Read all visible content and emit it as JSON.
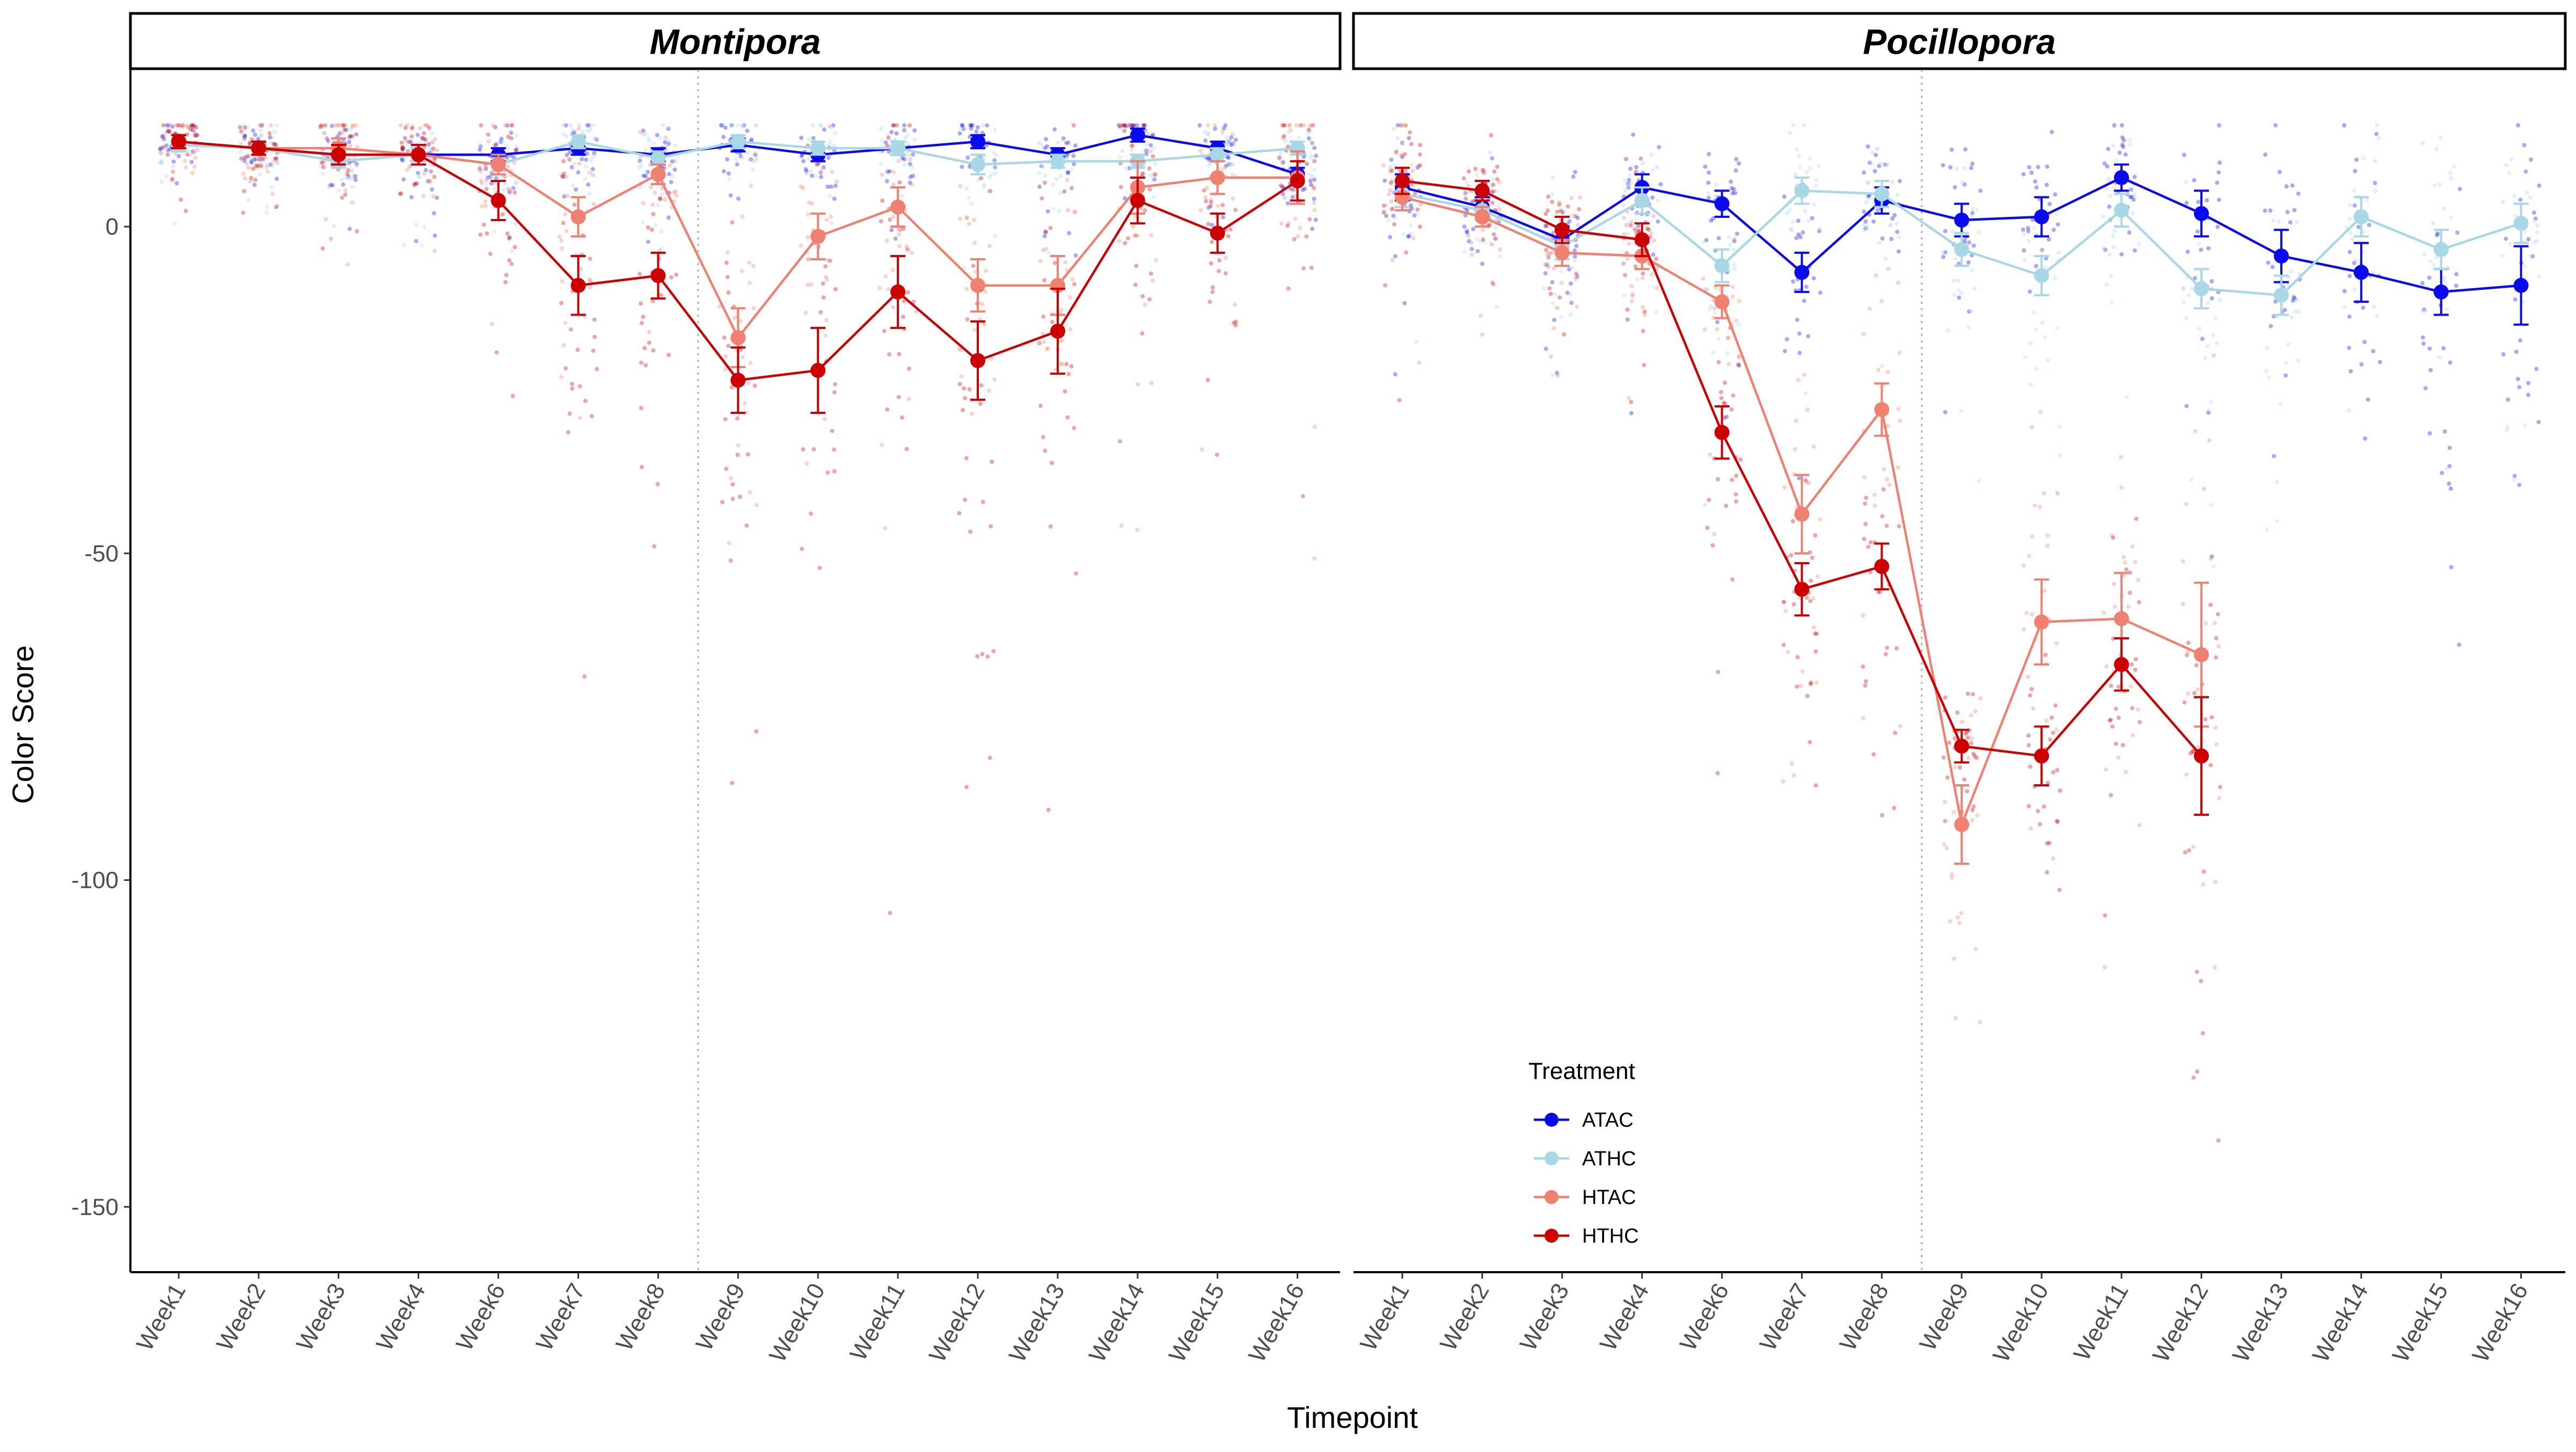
{
  "chart_data": {
    "type": "line",
    "xlabel": "Timepoint",
    "ylabel": "Color Score",
    "ylim": [
      -160,
      24
    ],
    "yticks": [
      0,
      -50,
      -100,
      -150
    ],
    "grid": false,
    "legend": {
      "title": "Treatment",
      "placement": "inside-bottom-center",
      "entries": [
        "ATAC",
        "ATHC",
        "HTAC",
        "HTHC"
      ]
    },
    "series_colors": {
      "ATAC": "#0a0aee",
      "ATHC": "#a8d8e6",
      "HTAC": "#f08070",
      "HTHC": "#cc0000"
    },
    "categories": [
      "Week1",
      "Week2",
      "Week3",
      "Week4",
      "Week6",
      "Week7",
      "Week8",
      "Week9",
      "Week10",
      "Week11",
      "Week12",
      "Week13",
      "Week14",
      "Week15",
      "Week16"
    ],
    "reference_line_between": [
      "Week8",
      "Week9"
    ],
    "panels": [
      {
        "title": "Montipora",
        "series": [
          {
            "name": "ATAC",
            "values": [
              13,
              12,
              11,
              11,
              11,
              12,
              11,
              12.5,
              11,
              12,
              13,
              11,
              14,
              12,
              8
            ],
            "err": [
              1,
              1,
              1,
              1,
              1,
              1,
              1,
              1,
              1,
              1,
              1,
              1,
              1,
              1,
              1
            ]
          },
          {
            "name": "ATHC",
            "values": [
              12.5,
              12,
              10,
              11,
              9.5,
              13,
              10.5,
              13,
              12,
              12,
              9.5,
              10,
              10,
              11,
              12
            ],
            "err": [
              1,
              1,
              1,
              1,
              1,
              1,
              1,
              1,
              1,
              1,
              1.5,
              1,
              1,
              1,
              1
            ]
          },
          {
            "name": "HTAC",
            "values": [
              13,
              12,
              12,
              11,
              9.5,
              1.5,
              8,
              -17,
              -1.5,
              3,
              -9,
              -9,
              6,
              7.5,
              7.5
            ],
            "err": [
              1,
              1,
              1.5,
              1.5,
              1.5,
              3,
              1.5,
              4.5,
              3.5,
              3,
              4,
              4.5,
              4,
              2.5,
              4
            ]
          },
          {
            "name": "HTHC",
            "values": [
              13,
              12,
              11,
              11,
              4,
              -9,
              -7.5,
              -23.5,
              -22,
              -10,
              -20.5,
              -16,
              4,
              -1,
              7
            ],
            "err": [
              1,
              1,
              1.5,
              1.5,
              3,
              4.5,
              3.5,
              5,
              6.5,
              5.5,
              6,
              6.5,
              3.5,
              3,
              3
            ]
          }
        ]
      },
      {
        "title": "Pocillopora",
        "series": [
          {
            "name": "ATAC",
            "values": [
              6,
              3,
              -2,
              6,
              3.5,
              -7,
              4,
              1,
              1.5,
              7.5,
              2,
              -4.5,
              -7,
              -10,
              -9
            ],
            "err": [
              2,
              1.5,
              2,
              2,
              2,
              3,
              2,
              2.5,
              3,
              2,
              3.5,
              4,
              4.5,
              3.5,
              6
            ]
          },
          {
            "name": "ATHC",
            "values": [
              5,
              2.5,
              -3,
              4,
              -6,
              5.5,
              5,
              -3.5,
              -7.5,
              2.5,
              -9.5,
              -10.5,
              1.5,
              -3.5,
              0.5
            ],
            "err": [
              2,
              1.5,
              2,
              2,
              2.5,
              2,
              2,
              2.5,
              3,
              2.5,
              3,
              3,
              3,
              3,
              3
            ]
          },
          {
            "name": "HTAC",
            "values": [
              4.5,
              1.5,
              -4,
              -4.5,
              -11.5,
              -44,
              -28,
              -91.5,
              -60.5,
              -60,
              -65.5,
              null,
              null,
              null,
              null
            ],
            "err": [
              2,
              1.5,
              2,
              2,
              2.5,
              6,
              4,
              6,
              6.5,
              7,
              11,
              null,
              null,
              null,
              null
            ]
          },
          {
            "name": "HTHC",
            "values": [
              7,
              5.5,
              -0.5,
              -2,
              -31.5,
              -55.5,
              -52,
              -79.5,
              -81,
              -67,
              -81,
              null,
              null,
              null,
              null
            ],
            "err": [
              2,
              1.5,
              2,
              2.5,
              4,
              4,
              3.5,
              2.5,
              4.5,
              4,
              9,
              null,
              null,
              null,
              null
            ]
          }
        ]
      }
    ]
  }
}
